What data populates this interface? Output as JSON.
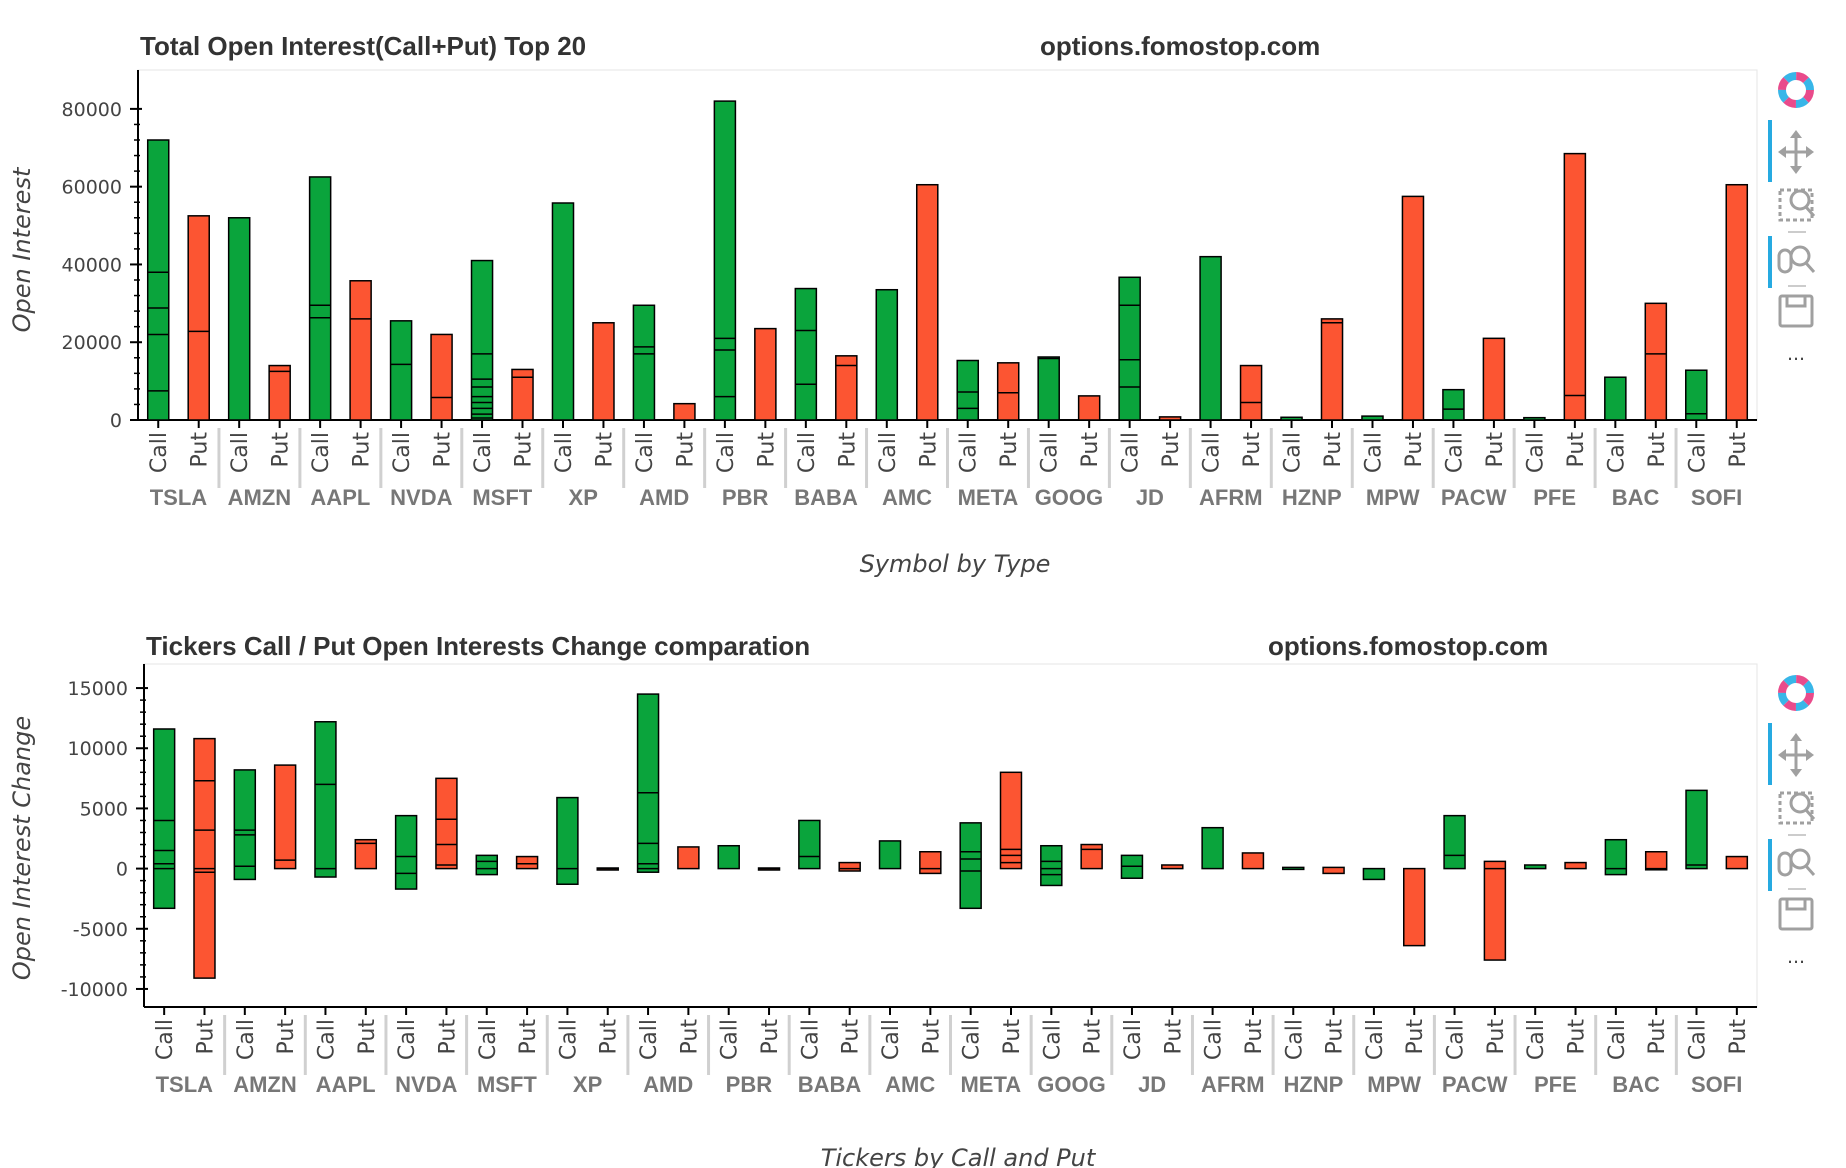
{
  "colors": {
    "call": "#0aa43c",
    "put": "#fc5532",
    "stroke": "#000000",
    "toolbar_accent": "#26aae1",
    "toolbar_icon": "#a0a0a0"
  },
  "toolbar": {
    "items": [
      "bokeh-logo-icon",
      "pan-icon",
      "box-zoom-icon",
      "wheel-zoom-icon",
      "save-icon",
      "more-icon"
    ],
    "more_label": "..."
  },
  "chart_data": [
    {
      "type": "bar",
      "title": "Total Open Interest(Call+Put) Top 20",
      "watermark": "options.fomostop.com",
      "xlabel": "Symbol by Type",
      "ylabel": "Open Interest",
      "ylim": [
        0,
        90000
      ],
      "yticks": [
        0,
        20000,
        40000,
        60000,
        80000
      ],
      "ytick_labels": [
        "0",
        "20000",
        "40000",
        "60000",
        "80000"
      ],
      "types": [
        "Call",
        "Put"
      ],
      "categories": [
        "TSLA",
        "AMZN",
        "AAPL",
        "NVDA",
        "MSFT",
        "XP",
        "AMD",
        "PBR",
        "BABA",
        "AMC",
        "META",
        "GOOG",
        "JD",
        "AFRM",
        "HZNP",
        "MPW",
        "PACW",
        "PFE",
        "BAC",
        "SOFI"
      ],
      "series": [
        {
          "name": "Call",
          "values": [
            72000,
            52000,
            62500,
            25500,
            41000,
            55800,
            29500,
            82000,
            33800,
            33500,
            15300,
            16200,
            36700,
            42000,
            700,
            1000,
            7800,
            600,
            11000,
            12800
          ],
          "segments": [
            [
              0,
              7500,
              22000,
              28800,
              38000,
              72000
            ],
            [
              0,
              52000
            ],
            [
              0,
              26300,
              29500,
              62500
            ],
            [
              0,
              14300,
              25500
            ],
            [
              0,
              500,
              1500,
              3000,
              4500,
              6000,
              8500,
              10500,
              17000,
              41000
            ],
            [
              0,
              55800
            ],
            [
              0,
              17000,
              18800,
              29500
            ],
            [
              0,
              6000,
              18000,
              21000,
              82000
            ],
            [
              0,
              9200,
              23000,
              33800
            ],
            [
              0,
              33500
            ],
            [
              0,
              3000,
              7200,
              15300
            ],
            [
              0,
              15800,
              16200
            ],
            [
              0,
              8500,
              15500,
              29500,
              36700
            ],
            [
              0,
              42000
            ],
            [
              0,
              700
            ],
            [
              0,
              1000
            ],
            [
              0,
              2800,
              7800
            ],
            [
              0,
              600
            ],
            [
              0,
              11000
            ],
            [
              0,
              1600,
              12800
            ]
          ]
        },
        {
          "name": "Put",
          "values": [
            52500,
            14000,
            35800,
            22000,
            13000,
            25000,
            4200,
            23500,
            16500,
            60500,
            14700,
            6200,
            800,
            14000,
            26000,
            57500,
            21000,
            68500,
            30000,
            60500
          ],
          "segments": [
            [
              0,
              22800,
              52500
            ],
            [
              0,
              12500,
              14000
            ],
            [
              0,
              26000,
              35800
            ],
            [
              0,
              5800,
              22000
            ],
            [
              0,
              11000,
              13000
            ],
            [
              0,
              25000
            ],
            [
              0,
              4200
            ],
            [
              0,
              23500
            ],
            [
              0,
              14000,
              16500
            ],
            [
              0,
              60500
            ],
            [
              0,
              7000,
              14700
            ],
            [
              0,
              6200
            ],
            [
              0,
              800
            ],
            [
              0,
              4500,
              14000
            ],
            [
              0,
              25000,
              26000
            ],
            [
              0,
              57500
            ],
            [
              0,
              21000
            ],
            [
              0,
              6300,
              68500
            ],
            [
              0,
              17000,
              30000
            ],
            [
              0,
              60500
            ]
          ]
        }
      ]
    },
    {
      "type": "bar",
      "title": "Tickers Call / Put Open Interests Change comparation",
      "watermark": "options.fomostop.com",
      "xlabel": "Tickers by Call and Put",
      "ylabel": "Open Interest Change",
      "ylim": [
        -11500,
        17000
      ],
      "yticks": [
        -10000,
        -5000,
        0,
        5000,
        10000,
        15000
      ],
      "ytick_labels": [
        "-10000",
        "-5000",
        "0",
        "5000",
        "10000",
        "15000"
      ],
      "types": [
        "Call",
        "Put"
      ],
      "categories": [
        "TSLA",
        "AMZN",
        "AAPL",
        "NVDA",
        "MSFT",
        "XP",
        "AMD",
        "PBR",
        "BABA",
        "AMC",
        "META",
        "GOOG",
        "JD",
        "AFRM",
        "HZNP",
        "MPW",
        "PACW",
        "PFE",
        "BAC",
        "SOFI"
      ],
      "series": [
        {
          "name": "Call",
          "values": [
            [
              -3300,
              11600
            ],
            [
              -900,
              8200
            ],
            [
              -700,
              12200
            ],
            [
              -1700,
              4400
            ],
            [
              -500,
              1100
            ],
            [
              -1300,
              5900
            ],
            [
              -300,
              14500
            ],
            [
              0,
              1900
            ],
            [
              0,
              4000
            ],
            [
              0,
              2300
            ],
            [
              -3300,
              3800
            ],
            [
              -1400,
              1900
            ],
            [
              -800,
              1100
            ],
            [
              0,
              3400
            ],
            [
              0,
              100
            ],
            [
              -900,
              0
            ],
            [
              0,
              4400
            ],
            [
              0,
              300
            ],
            [
              -500,
              2400
            ],
            [
              0,
              6500
            ]
          ],
          "lines": [
            [
              -3300,
              0,
              400,
              1500,
              4000,
              11600
            ],
            [
              -900,
              200,
              2800,
              3200,
              8200
            ],
            [
              -700,
              0,
              7000,
              12200
            ],
            [
              -1700,
              -400,
              1000,
              4400
            ],
            [
              -500,
              0,
              600,
              1100
            ],
            [
              -1300,
              0,
              5900
            ],
            [
              -300,
              0,
              400,
              2100,
              6300,
              14500
            ],
            [
              0,
              1900
            ],
            [
              0,
              1000,
              4000
            ],
            [
              0,
              2300
            ],
            [
              -3300,
              -200,
              800,
              1400,
              3800
            ],
            [
              -1400,
              -500,
              0,
              600,
              1900
            ],
            [
              -800,
              200,
              1100
            ],
            [
              0,
              3400
            ],
            [
              0,
              100
            ],
            [
              -900,
              0
            ],
            [
              0,
              1100,
              4400
            ],
            [
              0,
              300
            ],
            [
              -500,
              0,
              2400
            ],
            [
              0,
              300,
              6500
            ]
          ]
        },
        {
          "name": "Put",
          "values": [
            [
              -9100,
              10800
            ],
            [
              0,
              8600
            ],
            [
              0,
              2400
            ],
            [
              0,
              7500
            ],
            [
              0,
              1000
            ],
            [
              -50,
              50
            ],
            [
              0,
              1800
            ],
            [
              -50,
              50
            ],
            [
              -200,
              500
            ],
            [
              -400,
              1400
            ],
            [
              0,
              8000
            ],
            [
              0,
              2000
            ],
            [
              0,
              300
            ],
            [
              0,
              1300
            ],
            [
              -400,
              100
            ],
            [
              -6400,
              0
            ],
            [
              -7600,
              600
            ],
            [
              0,
              500
            ],
            [
              -100,
              1400
            ],
            [
              0,
              1000
            ]
          ],
          "lines": [
            [
              -9100,
              -300,
              0,
              3200,
              7300,
              10800
            ],
            [
              0,
              700,
              8600
            ],
            [
              0,
              2100,
              2400
            ],
            [
              0,
              300,
              2000,
              4100,
              7500
            ],
            [
              0,
              400,
              1000
            ],
            [
              0
            ],
            [
              0,
              1800
            ],
            [
              0
            ],
            [
              -200,
              0,
              500
            ],
            [
              -400,
              0,
              1400
            ],
            [
              0,
              500,
              1100,
              1600,
              8000
            ],
            [
              0,
              1600,
              2000
            ],
            [
              0,
              300
            ],
            [
              0,
              1300
            ],
            [
              -400,
              100
            ],
            [
              -6400,
              0
            ],
            [
              -7600,
              0,
              600
            ],
            [
              0,
              500
            ],
            [
              -100,
              0,
              1400
            ],
            [
              0,
              1000
            ]
          ]
        }
      ]
    }
  ]
}
